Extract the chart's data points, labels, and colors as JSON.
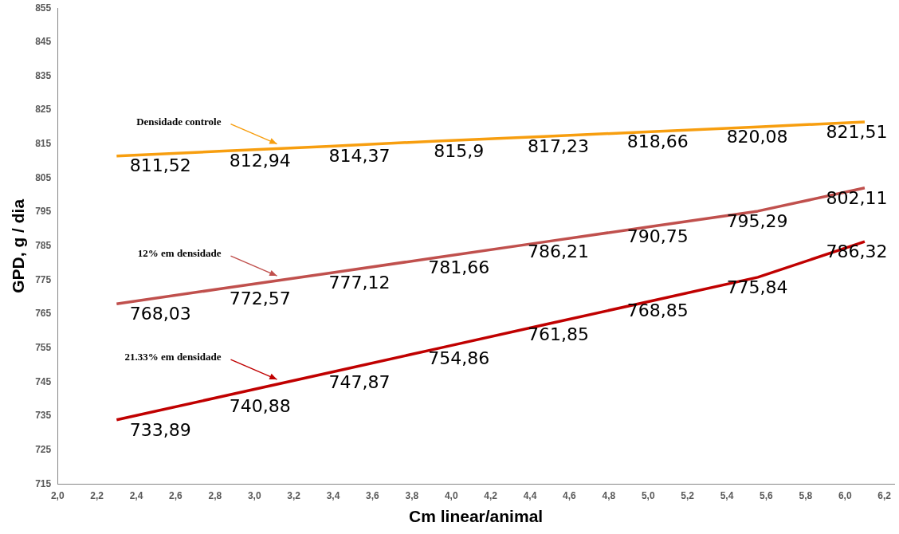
{
  "chart_data": {
    "type": "line",
    "xlabel": "Cm linear/animal",
    "ylabel": "GPD, g / dia",
    "x": [
      2.3,
      2.843,
      3.386,
      3.929,
      4.471,
      5.014,
      5.557,
      6.1
    ],
    "series": [
      {
        "color": "#f79e0f",
        "values": [
          811.52,
          812.94,
          814.37,
          815.9,
          817.23,
          818.66,
          820.08,
          821.51
        ],
        "value_labels": [
          "811,52",
          "812,94",
          "814,37",
          "815,9",
          "817,23",
          "818,66",
          "820,08",
          "821,51"
        ]
      },
      {
        "color": "#c0504d",
        "values": [
          768.03,
          772.57,
          777.12,
          781.66,
          786.21,
          790.75,
          795.29,
          802.11
        ],
        "value_labels": [
          "768,03",
          "772,57",
          "777,12",
          "781,66",
          "786,21",
          "790,75",
          "795,29",
          "802,11"
        ]
      },
      {
        "color": "#c00000",
        "values": [
          733.89,
          740.88,
          747.87,
          754.86,
          761.85,
          768.85,
          775.84,
          786.32
        ],
        "value_labels": [
          "733,89",
          "740,88",
          "747,87",
          "754,86",
          "761,85",
          "768,85",
          "775,84",
          "786,32"
        ]
      }
    ],
    "annotations": [
      "Densidade controle",
      "12% em densidade",
      "21.33% em densidade"
    ],
    "xlim": [
      2.0,
      6.25
    ],
    "xticks": [
      {
        "value": 2.0,
        "label": "2,0"
      },
      {
        "value": 2.2,
        "label": "2,2"
      },
      {
        "value": 2.4,
        "label": "2,4"
      },
      {
        "value": 2.6,
        "label": "2,6"
      },
      {
        "value": 2.8,
        "label": "2,8"
      },
      {
        "value": 3.0,
        "label": "3,0"
      },
      {
        "value": 3.2,
        "label": "3,2"
      },
      {
        "value": 3.4,
        "label": "3,4"
      },
      {
        "value": 3.6,
        "label": "3,6"
      },
      {
        "value": 3.8,
        "label": "3,8"
      },
      {
        "value": 4.0,
        "label": "4,0"
      },
      {
        "value": 4.2,
        "label": "4,2"
      },
      {
        "value": 4.4,
        "label": "4,4"
      },
      {
        "value": 4.6,
        "label": "4,6"
      },
      {
        "value": 4.8,
        "label": "4,8"
      },
      {
        "value": 5.0,
        "label": "5,0"
      },
      {
        "value": 5.2,
        "label": "5,2"
      },
      {
        "value": 5.4,
        "label": "5,4"
      },
      {
        "value": 5.6,
        "label": "5,6"
      },
      {
        "value": 5.8,
        "label": "5,8"
      },
      {
        "value": 6.0,
        "label": "6,0"
      },
      {
        "value": 6.2,
        "label": "6,2"
      }
    ],
    "ylim": [
      715,
      855
    ],
    "yticks": [
      715,
      725,
      735,
      745,
      755,
      765,
      775,
      785,
      795,
      805,
      815,
      825,
      835,
      845,
      855
    ],
    "grid": false,
    "legend": false,
    "marker": "none",
    "line_style": "solid"
  }
}
